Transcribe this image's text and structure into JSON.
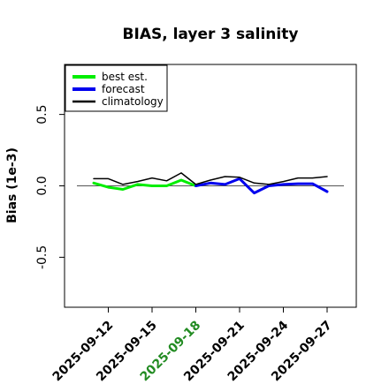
{
  "chart_data": {
    "type": "line",
    "title": "BIAS, layer 3 salinity",
    "xlabel": "",
    "ylabel": "Bias (1e-3)",
    "ylim": [
      -0.85,
      0.85
    ],
    "xlim": [
      "2025-09-09",
      "2025-09-29"
    ],
    "y_ticks": [
      -0.5,
      0.0,
      0.5
    ],
    "y_tick_labels": [
      "-0.5",
      "0.0",
      "0.5"
    ],
    "x_ticks": [
      "2025-09-12",
      "2025-09-15",
      "2025-09-18",
      "2025-09-21",
      "2025-09-24",
      "2025-09-27"
    ],
    "x_tick_labels": [
      "2025-09-12",
      "2025-09-15",
      "2025-09-18",
      "2025-09-21",
      "2025-09-24",
      "2025-09-27"
    ],
    "highlighted_tick": "2025-09-18",
    "highlight_color": "#228b22",
    "zero_line": true,
    "grid": false,
    "legend_position": "top-left",
    "series": [
      {
        "name": "best est.",
        "color": "#00ee00",
        "line_width": 3,
        "x": [
          "2025-09-11",
          "2025-09-12",
          "2025-09-13",
          "2025-09-14",
          "2025-09-15",
          "2025-09-16",
          "2025-09-17",
          "2025-09-18"
        ],
        "y": [
          0.02,
          -0.01,
          -0.025,
          0.01,
          0.0,
          0.0,
          0.04,
          0.0
        ]
      },
      {
        "name": "forecast",
        "color": "#0000ee",
        "line_width": 3,
        "x": [
          "2025-09-18",
          "2025-09-19",
          "2025-09-20",
          "2025-09-21",
          "2025-09-22",
          "2025-09-23",
          "2025-09-24",
          "2025-09-25",
          "2025-09-26",
          "2025-09-27"
        ],
        "y": [
          0.0,
          0.02,
          0.01,
          0.05,
          -0.05,
          0.0,
          0.01,
          0.015,
          0.015,
          -0.04
        ]
      },
      {
        "name": "climatology",
        "color": "#000000",
        "line_width": 1.5,
        "x": [
          "2025-09-11",
          "2025-09-12",
          "2025-09-13",
          "2025-09-14",
          "2025-09-15",
          "2025-09-16",
          "2025-09-17",
          "2025-09-18",
          "2025-09-19",
          "2025-09-20",
          "2025-09-21",
          "2025-09-22",
          "2025-09-23",
          "2025-09-24",
          "2025-09-25",
          "2025-09-26",
          "2025-09-27"
        ],
        "y": [
          0.05,
          0.05,
          0.01,
          0.03,
          0.055,
          0.035,
          0.09,
          0.01,
          0.04,
          0.065,
          0.06,
          0.02,
          0.01,
          0.03,
          0.055,
          0.055,
          0.065
        ]
      }
    ]
  }
}
